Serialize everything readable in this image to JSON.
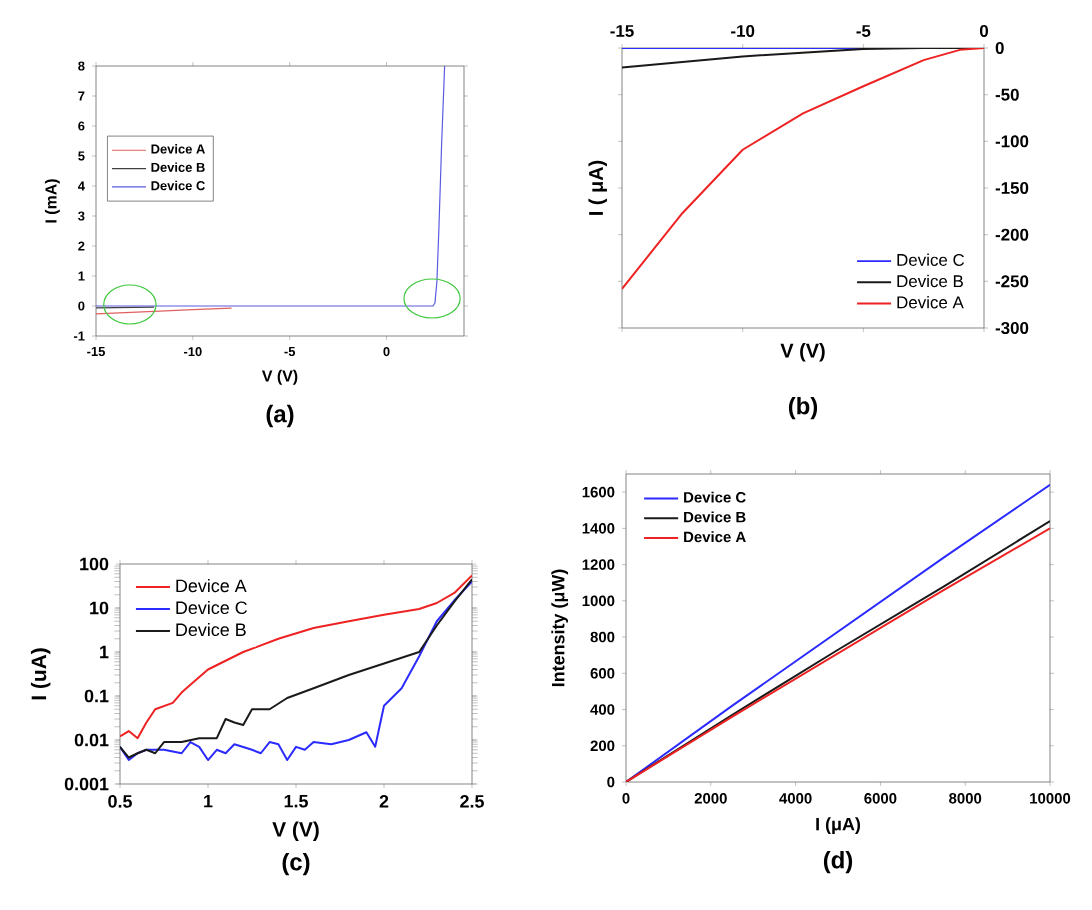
{
  "chart_data": [
    {
      "type": "line",
      "xlabel": "V (V)",
      "ylabel": "I (mA)",
      "annotations": [
        "(a)"
      ],
      "xlim": [
        -15,
        4
      ],
      "ylim": [
        -1,
        8
      ],
      "xticks": [
        -15,
        -10,
        -5,
        0
      ],
      "yticks": [
        -1,
        0,
        1,
        2,
        3,
        4,
        5,
        6,
        7,
        8
      ],
      "legend": "left",
      "grid": false,
      "series": [
        {
          "name": "Device A",
          "color": "#e06060",
          "x": [
            -15,
            -12,
            -10,
            -8
          ],
          "values": [
            -0.26,
            -0.18,
            -0.12,
            -0.07
          ]
        },
        {
          "name": "Device B",
          "color": "#404040",
          "x": [
            -15,
            -12
          ],
          "values": [
            -0.06,
            -0.04
          ]
        },
        {
          "name": "Device C",
          "color": "#5a5ae0",
          "x": [
            -15,
            -12,
            -10,
            -8,
            -5,
            -3,
            0,
            2,
            2.4,
            2.5,
            2.6,
            2.7,
            2.85,
            3.0
          ],
          "values": [
            0,
            0,
            0,
            0,
            0,
            0,
            0,
            0,
            0,
            0.1,
            0.8,
            2.5,
            5.5,
            8
          ]
        }
      ]
    },
    {
      "type": "line",
      "xlabel": "V (V)",
      "ylabel": "I ( μA)",
      "annotations": [
        "(b)"
      ],
      "xlim": [
        -15,
        0
      ],
      "ylim": [
        -300,
        0
      ],
      "xticks": [
        -15,
        -10,
        -5,
        0
      ],
      "yticks": [
        -300,
        -250,
        -200,
        -150,
        -100,
        -50,
        0
      ],
      "legend": "bottom right",
      "grid": false,
      "series": [
        {
          "name": "Device C",
          "color": "#2b2bff",
          "x": [
            -15,
            -10,
            -5,
            0
          ],
          "values": [
            0,
            0,
            0,
            0
          ]
        },
        {
          "name": "Device B",
          "color": "#1a1a1a",
          "x": [
            -15,
            -10,
            -5,
            -2.5,
            0
          ],
          "values": [
            -21,
            -9,
            -1,
            0,
            0
          ]
        },
        {
          "name": "Device A",
          "color": "#ee2222",
          "x": [
            -15,
            -12.5,
            -10,
            -7.5,
            -5,
            -2.5,
            -1,
            0
          ],
          "values": [
            -258,
            -177,
            -109,
            -70,
            -41,
            -13,
            -2,
            0
          ]
        }
      ]
    },
    {
      "type": "line",
      "xlabel": "V (V)",
      "ylabel": "I (uA)",
      "annotations": [
        "(c)"
      ],
      "xlim": [
        0.5,
        2.5
      ],
      "ylim": [
        0.001,
        100
      ],
      "xticks": [
        0.5,
        1,
        1.5,
        2,
        2.5
      ],
      "yticks": [
        0.001,
        0.01,
        0.1,
        1,
        10,
        100
      ],
      "log": "y",
      "legend": "top left",
      "grid": false,
      "series": [
        {
          "name": "Device A",
          "color": "#ee2222",
          "x": [
            0.5,
            0.55,
            0.6,
            0.65,
            0.7,
            0.8,
            0.85,
            0.9,
            1.0,
            1.2,
            1.4,
            1.6,
            1.8,
            2.0,
            2.2,
            2.3,
            2.4,
            2.5
          ],
          "values": [
            0.012,
            0.016,
            0.011,
            0.025,
            0.05,
            0.07,
            0.12,
            0.18,
            0.4,
            1,
            2,
            3.5,
            5,
            7,
            9.5,
            13,
            22,
            55
          ]
        },
        {
          "name": "Device C",
          "color": "#2b2bff",
          "x": [
            0.5,
            0.55,
            0.6,
            0.65,
            0.7,
            0.75,
            0.85,
            0.9,
            0.95,
            1.0,
            1.05,
            1.1,
            1.15,
            1.25,
            1.3,
            1.35,
            1.4,
            1.45,
            1.5,
            1.55,
            1.6,
            1.7,
            1.8,
            1.9,
            1.95,
            2.0,
            2.1,
            2.2,
            2.3,
            2.4,
            2.5
          ],
          "values": [
            0.007,
            0.0035,
            0.005,
            0.006,
            0.006,
            0.006,
            0.005,
            0.009,
            0.007,
            0.0035,
            0.006,
            0.005,
            0.008,
            0.006,
            0.005,
            0.009,
            0.008,
            0.0035,
            0.007,
            0.006,
            0.009,
            0.008,
            0.01,
            0.015,
            0.007,
            0.06,
            0.15,
            0.8,
            5,
            15,
            40
          ]
        },
        {
          "name": "Device B",
          "color": "#1a1a1a",
          "x": [
            0.5,
            0.55,
            0.6,
            0.65,
            0.7,
            0.75,
            0.85,
            0.95,
            1.05,
            1.1,
            1.15,
            1.2,
            1.25,
            1.35,
            1.45,
            1.6,
            1.8,
            2.0,
            2.2,
            2.3,
            2.4,
            2.5
          ],
          "values": [
            0.007,
            0.004,
            0.005,
            0.006,
            0.005,
            0.009,
            0.009,
            0.011,
            0.011,
            0.03,
            0.025,
            0.022,
            0.05,
            0.05,
            0.09,
            0.15,
            0.3,
            0.55,
            1.0,
            4,
            14,
            45
          ]
        }
      ]
    },
    {
      "type": "line",
      "xlabel": "I (μA)",
      "ylabel": "Intensity (μW)",
      "annotations": [
        "(d)"
      ],
      "xlim": [
        0,
        10000
      ],
      "ylim": [
        0,
        1700
      ],
      "xticks": [
        0,
        2000,
        4000,
        6000,
        8000,
        10000
      ],
      "yticks": [
        0,
        200,
        400,
        600,
        800,
        1000,
        1200,
        1400,
        1600
      ],
      "legend": "top left",
      "grid": false,
      "series": [
        {
          "name": "Device C",
          "color": "#2b2bff",
          "x": [
            0,
            2500,
            5000,
            7500,
            10000
          ],
          "values": [
            0,
            420,
            830,
            1240,
            1640
          ]
        },
        {
          "name": "Device B",
          "color": "#1a1a1a",
          "x": [
            0,
            2500,
            5000,
            7500,
            10000
          ],
          "values": [
            0,
            370,
            730,
            1080,
            1440
          ]
        },
        {
          "name": "Device A",
          "color": "#ee2222",
          "x": [
            0,
            2500,
            5000,
            7500,
            10000
          ],
          "values": [
            0,
            360,
            710,
            1060,
            1400
          ]
        }
      ]
    }
  ]
}
